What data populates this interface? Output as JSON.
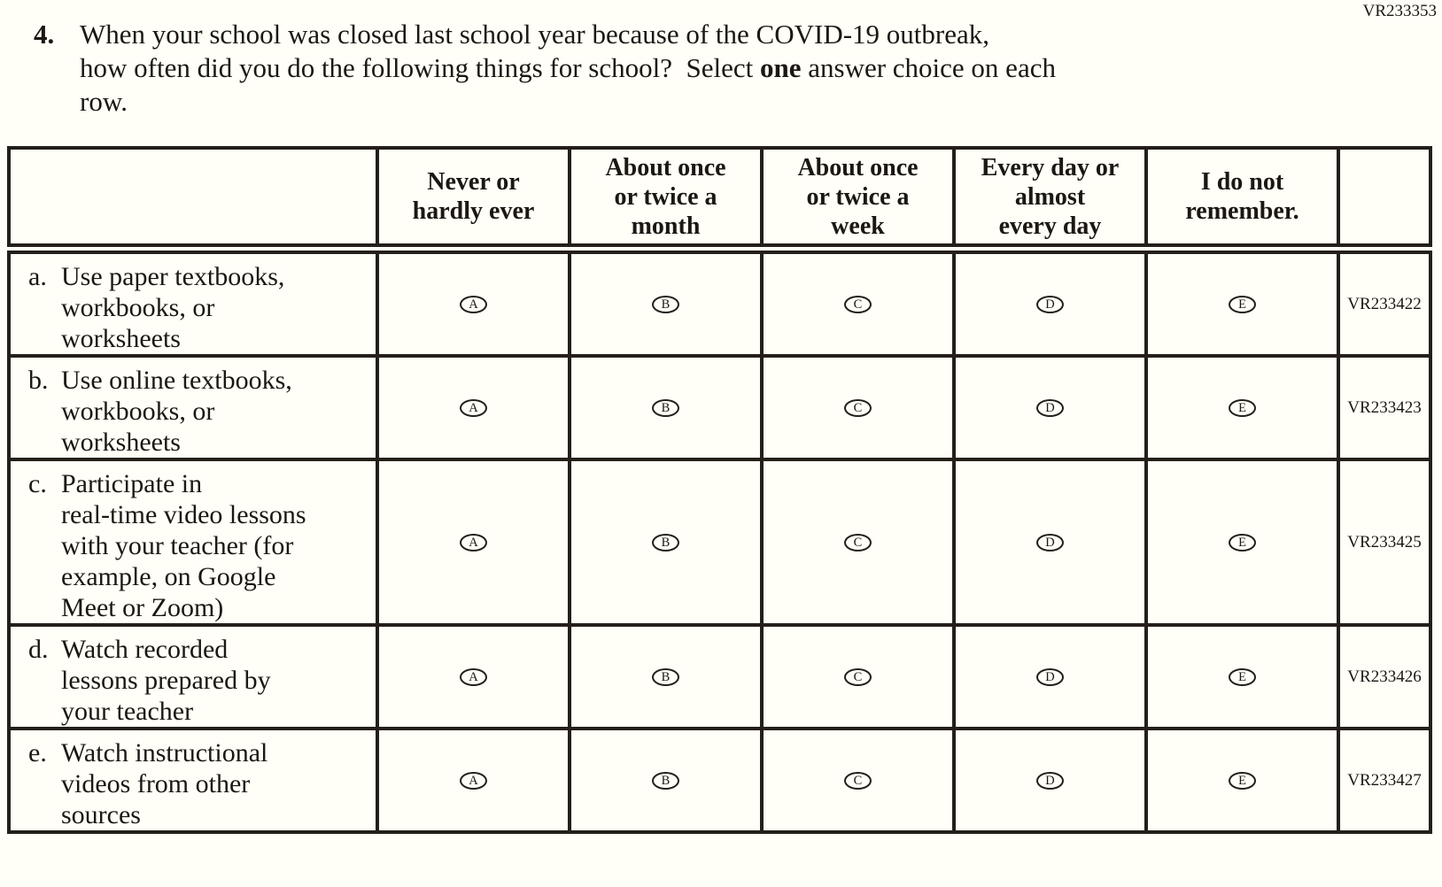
{
  "page": {
    "background_color": "#fffef7",
    "text_color": "#1c1712",
    "border_color": "#242019"
  },
  "corner_code": "VR233353",
  "question": {
    "number": "4.",
    "line1": "When your school was closed last school year because of the COVID-19 outbreak,",
    "line2_pre": "how often did you do the following things for school?  Select ",
    "line2_bold": "one",
    "line2_post": " answer choice on each",
    "line3": "row."
  },
  "table": {
    "column_headers": [
      "Never or\nhardly ever",
      "About once\nor twice a\nmonth",
      "About once\nor twice a\nweek",
      "Every day or\nalmost\nevery day",
      "I do not\nremember."
    ],
    "choices": [
      "A",
      "B",
      "C",
      "D",
      "E"
    ],
    "rows": [
      {
        "key": "a.",
        "text": "Use paper textbooks,\nworkbooks, or\nworksheets",
        "code": "VR233422"
      },
      {
        "key": "b.",
        "text": "Use online textbooks,\nworkbooks, or\nworksheets",
        "code": "VR233423"
      },
      {
        "key": "c.",
        "text": "Participate in\nreal-time video lessons\nwith your teacher (for\nexample, on Google\nMeet or Zoom)",
        "code": "VR233425"
      },
      {
        "key": "d.",
        "text": "Watch recorded\nlessons prepared by\nyour teacher",
        "code": "VR233426"
      },
      {
        "key": "e.",
        "text": "Watch instructional\nvideos from other\nsources",
        "code": "VR233427"
      }
    ]
  }
}
